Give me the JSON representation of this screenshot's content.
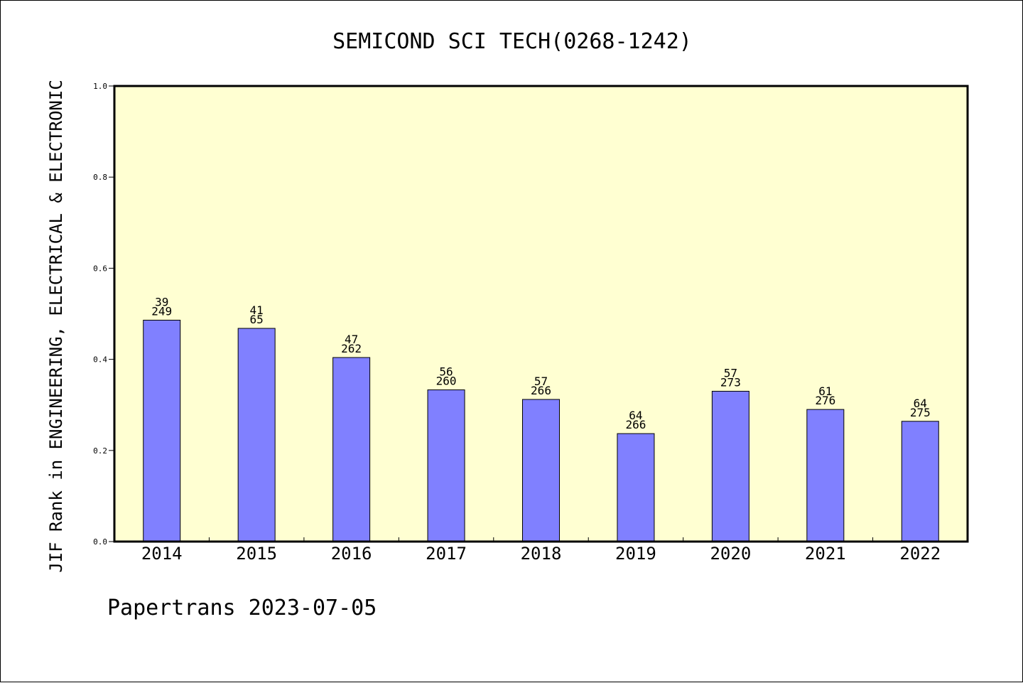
{
  "chart_data": {
    "type": "bar",
    "title": "SEMICOND SCI TECH(0268-1242)",
    "xlabel": "",
    "ylabel": "JIF Rank in ENGINEERING, ELECTRICAL & ELECTRONIC",
    "ylim": [
      0.0,
      1.0
    ],
    "yticks": [
      "0.0",
      "0.2",
      "0.4",
      "0.6",
      "0.8",
      "1.0"
    ],
    "categories": [
      "2014",
      "2015",
      "2016",
      "2017",
      "2018",
      "2019",
      "2020",
      "2021",
      "2022"
    ],
    "values": [
      0.486,
      0.468,
      0.404,
      0.333,
      0.312,
      0.237,
      0.33,
      0.29,
      0.264
    ],
    "rank_labels": [
      "39",
      "41",
      "47",
      "56",
      "57",
      "64",
      "57",
      "61",
      "64"
    ],
    "total_labels": [
      "249",
      "65",
      "262",
      "260",
      "266",
      "266",
      "273",
      "276",
      "275"
    ],
    "grid": false,
    "legend": "none",
    "colors": {
      "plot_background": "#FFFFD2",
      "bar": "#8080FF"
    }
  },
  "footer": {
    "text": "Papertrans 2023-07-05"
  }
}
